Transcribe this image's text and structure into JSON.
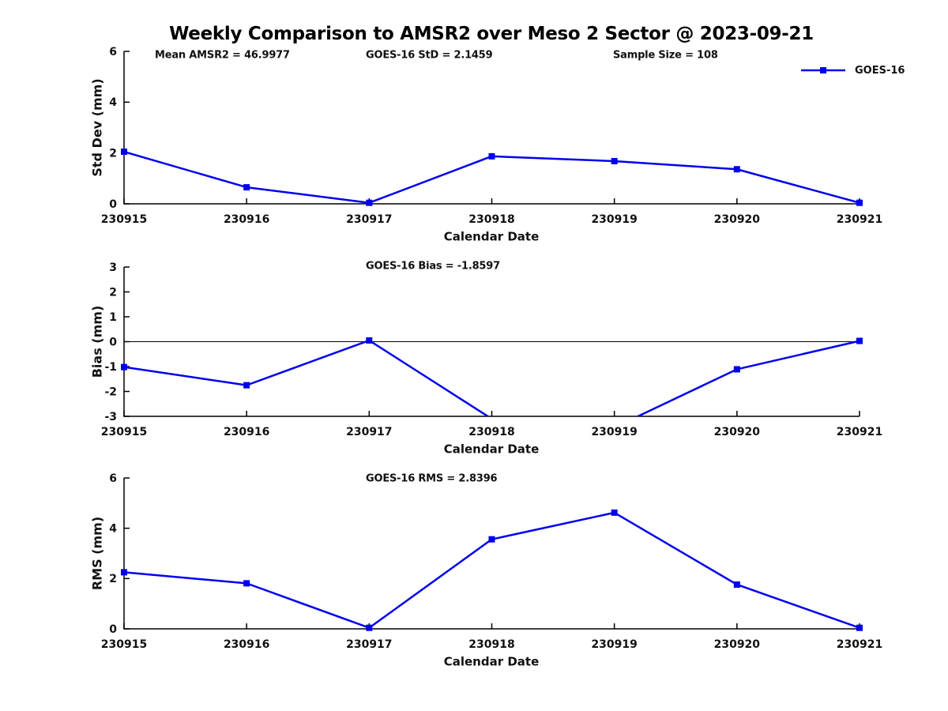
{
  "title": "Weekly Comparison to AMSR2 over Meso 2 Sector @ 2023-09-21",
  "legend": {
    "label": "GOES-16"
  },
  "colors": {
    "series": "#0000EE",
    "axis": "#000000",
    "text": "#111111",
    "background": "#ffffff"
  },
  "chart_data": [
    {
      "type": "line",
      "panel": "std-dev",
      "annotations": [
        "Mean AMSR2 = 46.9977",
        "GOES-16 StD = 2.1459",
        "Sample Size = 108"
      ],
      "categories": [
        "230915",
        "230916",
        "230917",
        "230918",
        "230919",
        "230920",
        "230921"
      ],
      "series": [
        {
          "name": "GOES-16",
          "values": [
            2.05,
            0.65,
            0.04,
            1.87,
            1.68,
            1.36,
            0.04
          ]
        }
      ],
      "xlabel": "Calendar Date",
      "ylabel": "Std Dev (mm)",
      "ylim": [
        0,
        6
      ],
      "yticks": [
        0,
        2,
        4,
        6
      ],
      "grid": false,
      "legend_position": "top-right"
    },
    {
      "type": "line",
      "panel": "bias",
      "annotations": [
        "GOES-16 Bias  = -1.8597"
      ],
      "categories": [
        "230915",
        "230916",
        "230917",
        "230918",
        "230919",
        "230920",
        "230921"
      ],
      "series": [
        {
          "name": "GOES-16",
          "values": [
            -1.02,
            -1.75,
            0.05,
            -3.1,
            -3.45,
            -1.11,
            0.03
          ]
        }
      ],
      "xlabel": "Calendar Date",
      "ylabel": "Bias (mm)",
      "ylim": [
        -3,
        3
      ],
      "yticks": [
        -3,
        -2,
        -1,
        0,
        1,
        2,
        3
      ],
      "zero_line": true,
      "grid": false,
      "note": "Points at 230918 and 230919 fall below the -3 mm axis limit and are clipped in the plot; their values are estimated from the visible line segments."
    },
    {
      "type": "line",
      "panel": "rms",
      "annotations": [
        "GOES-16 RMS = 2.8396"
      ],
      "categories": [
        "230915",
        "230916",
        "230917",
        "230918",
        "230919",
        "230920",
        "230921"
      ],
      "series": [
        {
          "name": "GOES-16",
          "values": [
            2.25,
            1.81,
            0.04,
            3.56,
            4.62,
            1.76,
            0.04
          ]
        }
      ],
      "xlabel": "Calendar Date",
      "ylabel": "RMS (mm)",
      "ylim": [
        0,
        6
      ],
      "yticks": [
        0,
        2,
        4,
        6
      ],
      "grid": false
    }
  ]
}
